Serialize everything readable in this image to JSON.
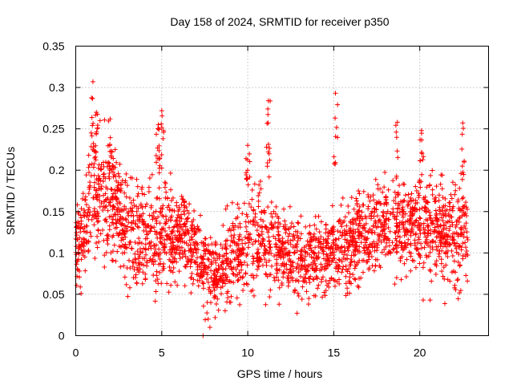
{
  "chart_data": {
    "type": "scatter",
    "title": "Day 158 of 2024, SRMTID for receiver p350",
    "xlabel": "GPS time / hours",
    "ylabel": "SRMTID / TECUs",
    "xlim": [
      0,
      24
    ],
    "ylim": [
      0,
      0.35
    ],
    "x_ticks": [
      0,
      5,
      10,
      15,
      20
    ],
    "x_tick_labels": [
      "0",
      "5",
      "10",
      "15",
      "20"
    ],
    "y_ticks": [
      0,
      0.05,
      0.1,
      0.15,
      0.2,
      0.25,
      0.3,
      0.35
    ],
    "y_tick_labels": [
      "0",
      "0.05",
      "0.1",
      "0.15",
      "0.2",
      "0.25",
      "0.3",
      "0.35"
    ],
    "grid": true,
    "marker": "+",
    "marker_color": "#ff0000",
    "series": [
      {
        "name": "SRMTID",
        "profile": {
          "x": [
            0,
            0.5,
            1.0,
            1.5,
            2.0,
            2.5,
            3.0,
            3.5,
            4.0,
            4.5,
            5.0,
            5.5,
            6.0,
            6.5,
            7.0,
            7.5,
            8.0,
            8.5,
            9.0,
            9.5,
            10.0,
            10.5,
            11.0,
            11.5,
            12.0,
            12.5,
            13.0,
            13.5,
            14.0,
            14.5,
            15.0,
            15.5,
            16.0,
            16.5,
            17.0,
            17.5,
            18.0,
            18.5,
            19.0,
            19.5,
            20.0,
            20.5,
            21.0,
            21.5,
            22.0,
            22.5,
            22.8
          ],
          "median": [
            0.1,
            0.13,
            0.17,
            0.17,
            0.16,
            0.15,
            0.13,
            0.12,
            0.12,
            0.12,
            0.12,
            0.13,
            0.12,
            0.12,
            0.1,
            0.08,
            0.07,
            0.08,
            0.1,
            0.1,
            0.11,
            0.12,
            0.12,
            0.11,
            0.1,
            0.1,
            0.09,
            0.09,
            0.1,
            0.1,
            0.1,
            0.1,
            0.11,
            0.12,
            0.12,
            0.13,
            0.13,
            0.12,
            0.13,
            0.13,
            0.14,
            0.14,
            0.13,
            0.12,
            0.12,
            0.13,
            0.14
          ],
          "spread": [
            0.035,
            0.04,
            0.05,
            0.05,
            0.05,
            0.045,
            0.04,
            0.04,
            0.04,
            0.04,
            0.04,
            0.04,
            0.035,
            0.035,
            0.03,
            0.03,
            0.03,
            0.03,
            0.035,
            0.035,
            0.04,
            0.04,
            0.04,
            0.035,
            0.03,
            0.03,
            0.03,
            0.03,
            0.03,
            0.03,
            0.035,
            0.035,
            0.035,
            0.035,
            0.035,
            0.035,
            0.035,
            0.035,
            0.035,
            0.035,
            0.04,
            0.04,
            0.04,
            0.04,
            0.04,
            0.045,
            0.045
          ]
        },
        "n_points": 2600,
        "x_range": [
          0,
          22.8
        ],
        "spikes": [
          {
            "x": 1.0,
            "ymin": 0.2,
            "ymax": 0.307
          },
          {
            "x": 1.2,
            "ymin": 0.2,
            "ymax": 0.27
          },
          {
            "x": 2.0,
            "ymin": 0.2,
            "ymax": 0.262
          },
          {
            "x": 5.0,
            "ymin": 0.2,
            "ymax": 0.272
          },
          {
            "x": 4.8,
            "ymin": 0.2,
            "ymax": 0.255
          },
          {
            "x": 10.0,
            "ymin": 0.18,
            "ymax": 0.23
          },
          {
            "x": 11.2,
            "ymin": 0.2,
            "ymax": 0.284
          },
          {
            "x": 15.1,
            "ymin": 0.2,
            "ymax": 0.293
          },
          {
            "x": 18.7,
            "ymin": 0.18,
            "ymax": 0.258
          },
          {
            "x": 20.1,
            "ymin": 0.18,
            "ymax": 0.248
          },
          {
            "x": 22.5,
            "ymin": 0.18,
            "ymax": 0.257
          }
        ],
        "lows": [
          {
            "x": 7.4,
            "y": 0.0
          },
          {
            "x": 7.8,
            "y": 0.01
          },
          {
            "x": 7.7,
            "y": 0.02
          },
          {
            "x": 20.2,
            "y": 0.043
          },
          {
            "x": 20.6,
            "y": 0.043
          }
        ]
      }
    ]
  }
}
